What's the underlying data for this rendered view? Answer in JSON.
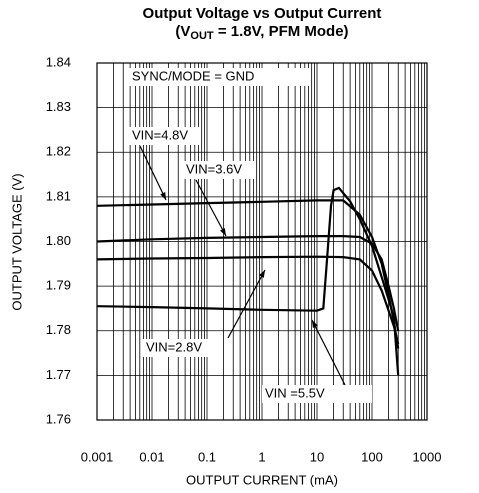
{
  "chart_data": {
    "type": "line",
    "title": "Output Voltage vs Output Current",
    "subtitle_parts": [
      "(V",
      "OUT",
      " = 1.8V, PFM Mode)"
    ],
    "annotation": "SYNC/MODE = GND",
    "x_label": "OUTPUT CURRENT (mA)",
    "y_label": "OUTPUT VOLTAGE (V)",
    "xscale": "log",
    "xlim": [
      0.001,
      1000
    ],
    "xticks": [
      0.001,
      0.01,
      0.1,
      1,
      10,
      100,
      1000
    ],
    "ylim": [
      1.76,
      1.84
    ],
    "yticks": [
      1.76,
      1.77,
      1.78,
      1.79,
      {
        "value": 1.8,
        "label": "1.80"
      },
      1.81,
      1.82,
      1.83,
      1.84
    ],
    "grid": true,
    "series": [
      {
        "name": "VIN=4.8V",
        "color": "#000000",
        "x": [
          0.001,
          0.01,
          0.1,
          1,
          10,
          30,
          60,
          100,
          150,
          200,
          250,
          300
        ],
        "values": [
          1.808,
          1.8083,
          1.8086,
          1.8089,
          1.8092,
          1.8092,
          1.806,
          1.801,
          1.795,
          1.788,
          1.782,
          1.776
        ]
      },
      {
        "name": "VIN=3.6V",
        "color": "#000000",
        "x": [
          0.001,
          0.01,
          0.1,
          1,
          10,
          30,
          60,
          100,
          150,
          200,
          250,
          300
        ],
        "values": [
          1.8,
          1.8005,
          1.8008,
          1.801,
          1.8012,
          1.8012,
          1.801,
          1.7995,
          1.796,
          1.79,
          1.785,
          1.78
        ]
      },
      {
        "name": "VIN=2.8V",
        "color": "#000000",
        "x": [
          0.001,
          0.01,
          0.1,
          1,
          10,
          30,
          60,
          100,
          150,
          200,
          250,
          300
        ],
        "values": [
          1.796,
          1.7962,
          1.7963,
          1.7965,
          1.7966,
          1.7965,
          1.796,
          1.7935,
          1.789,
          1.7845,
          1.781,
          1.777
        ]
      },
      {
        "name": "VIN =5.5V",
        "color": "#000000",
        "x": [
          0.001,
          0.01,
          0.1,
          1,
          10,
          13,
          15,
          18,
          20,
          25,
          40,
          60,
          100,
          150,
          200,
          250,
          300
        ],
        "values": [
          1.7855,
          1.7853,
          1.785,
          1.7847,
          1.7845,
          1.785,
          1.795,
          1.808,
          1.8115,
          1.812,
          1.809,
          1.805,
          1.799,
          1.792,
          1.787,
          1.783,
          1.77
        ]
      }
    ]
  }
}
